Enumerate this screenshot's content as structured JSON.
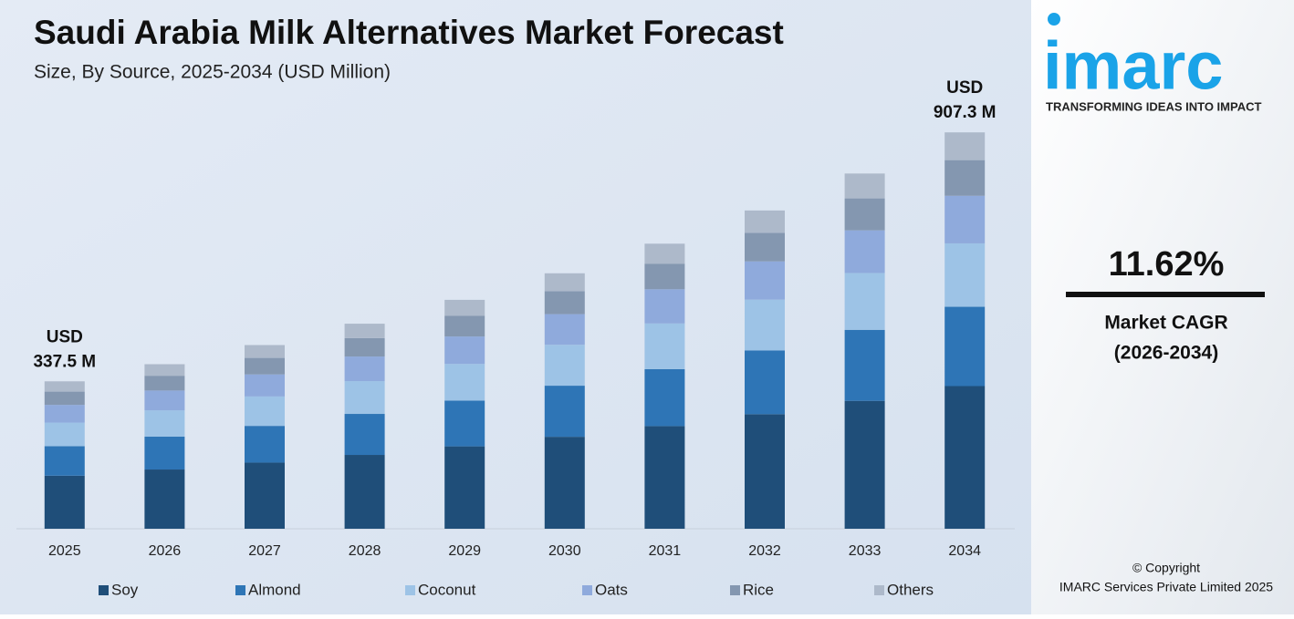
{
  "chart_data": {
    "type": "stacked-bar",
    "title": "Saudi Arabia Milk Alternatives Market Forecast",
    "subtitle": "Size, By Source, 2025-2034 (USD Million)",
    "categories": [
      "2025",
      "2026",
      "2027",
      "2028",
      "2029",
      "2030",
      "2031",
      "2032",
      "2033",
      "2034"
    ],
    "series": [
      {
        "name": "Soy",
        "color": "#1f4e79",
        "values": [
          121.5,
          135.6,
          151.4,
          169.0,
          188.6,
          210.5,
          235.0,
          262.3,
          292.8,
          326.6
        ]
      },
      {
        "name": "Almond",
        "color": "#2e75b6",
        "values": [
          67.5,
          75.3,
          84.1,
          93.9,
          104.8,
          117.0,
          130.5,
          145.7,
          162.6,
          181.5
        ]
      },
      {
        "name": "Coconut",
        "color": "#9dc3e6",
        "values": [
          54.0,
          60.3,
          67.3,
          75.1,
          83.8,
          93.6,
          104.4,
          116.6,
          130.1,
          145.2
        ]
      },
      {
        "name": "Oats",
        "color": "#8faadc",
        "values": [
          40.5,
          45.2,
          50.5,
          56.3,
          62.9,
          70.2,
          78.3,
          87.4,
          97.6,
          108.9
        ]
      },
      {
        "name": "Rice",
        "color": "#8497b0",
        "values": [
          30.4,
          33.9,
          37.8,
          42.2,
          47.2,
          52.6,
          58.7,
          65.6,
          73.2,
          81.7
        ]
      },
      {
        "name": "Others",
        "color": "#adb9ca",
        "values": [
          23.6,
          26.4,
          29.4,
          32.9,
          36.7,
          40.9,
          45.7,
          51.0,
          56.9,
          63.5
        ]
      }
    ],
    "annotations": [
      {
        "category": 0,
        "lines": [
          "USD",
          "337.5 M"
        ]
      },
      {
        "category": 9,
        "lines": [
          "USD",
          "907.3 M"
        ]
      }
    ],
    "ylim": [
      0,
      960
    ],
    "legend": "bottom"
  },
  "side_panel": {
    "logo": "imarc",
    "tagline": "TRANSFORMING IDEAS INTO IMPACT",
    "cagr": "11.62%",
    "cagr_label": "Market CAGR",
    "cagr_period": "(2026-2034)",
    "copyright": "© Copyright",
    "company": "IMARC Services Private Limited 2025"
  }
}
